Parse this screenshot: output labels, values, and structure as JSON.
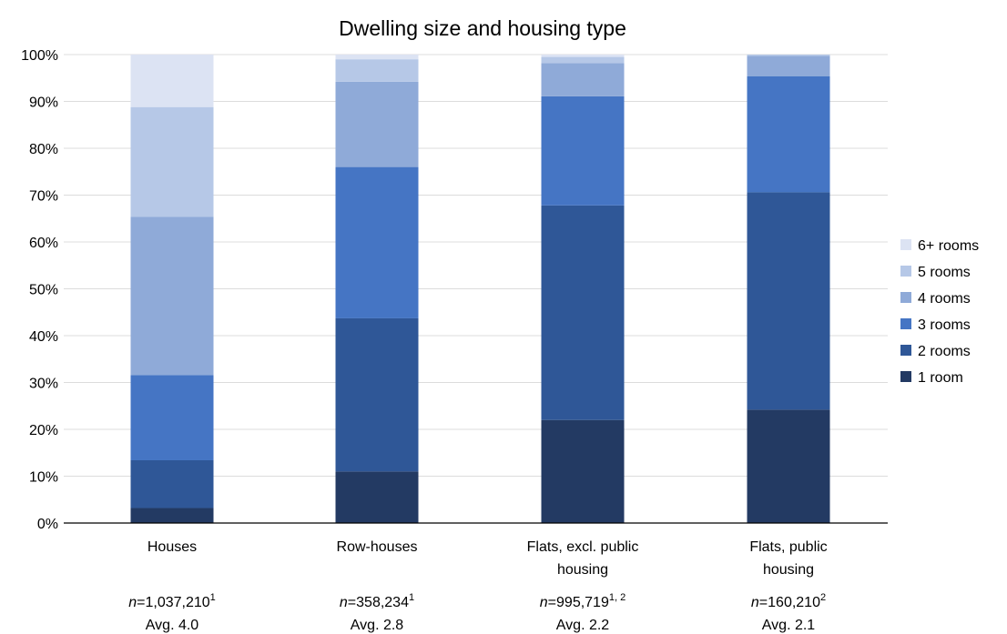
{
  "chart_data": {
    "type": "bar",
    "stacked": true,
    "title": "Dwelling size and housing type",
    "xlabel": "",
    "ylabel": "",
    "ylim": [
      0,
      100
    ],
    "y_ticks": [
      "0%",
      "10%",
      "20%",
      "30%",
      "40%",
      "50%",
      "60%",
      "70%",
      "80%",
      "90%",
      "100%"
    ],
    "grid": true,
    "legend_position": "right",
    "categories": [
      {
        "label_lines": [
          "Houses"
        ],
        "n_prefix": "n",
        "n_value": "=1,037,210",
        "n_sup": "1",
        "avg": "Avg. 4.0"
      },
      {
        "label_lines": [
          "Row-houses"
        ],
        "n_prefix": "n",
        "n_value": "=358,234",
        "n_sup": "1",
        "avg": "Avg. 2.8"
      },
      {
        "label_lines": [
          "Flats, excl. public",
          "housing"
        ],
        "n_prefix": "n",
        "n_value": "=995,719",
        "n_sup": "1, 2",
        "avg": "Avg. 2.2"
      },
      {
        "label_lines": [
          "Flats, public",
          "housing"
        ],
        "n_prefix": "n",
        "n_value": "=160,210",
        "n_sup": "2",
        "avg": "Avg. 2.1"
      }
    ],
    "series": [
      {
        "name": "1 room",
        "color": "#233a63",
        "values": [
          3.2,
          11.0,
          22.0,
          24.2
        ]
      },
      {
        "name": "2 rooms",
        "color": "#2f5797",
        "values": [
          10.2,
          32.7,
          45.8,
          46.4
        ]
      },
      {
        "name": "3 rooms",
        "color": "#4575c4",
        "values": [
          18.2,
          32.3,
          23.3,
          24.8
        ]
      },
      {
        "name": "4 rooms",
        "color": "#8faad8",
        "values": [
          33.8,
          18.2,
          7.1,
          4.3
        ]
      },
      {
        "name": "5 rooms",
        "color": "#b6c8e7",
        "values": [
          23.4,
          4.8,
          1.3,
          0.3
        ]
      },
      {
        "name": "6+ rooms",
        "color": "#dce3f3",
        "values": [
          11.2,
          1.0,
          0.5,
          0.0
        ]
      }
    ]
  }
}
